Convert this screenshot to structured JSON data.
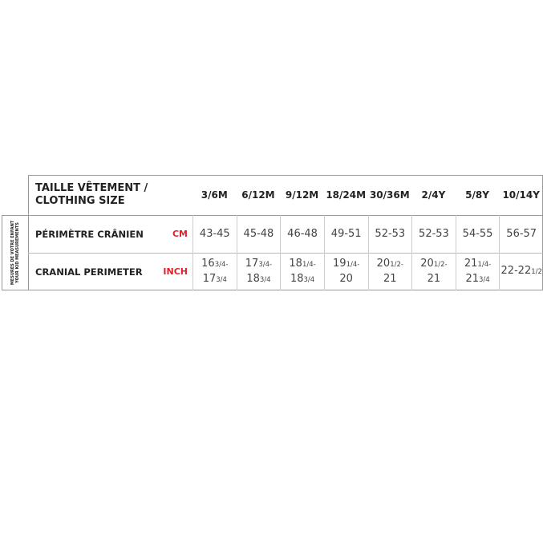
{
  "side_label": [
    "MESURES DE VOTRE ENFANT",
    "YOUR KID MEASUREMENTS"
  ],
  "table": {
    "header": {
      "title": [
        "TAILLE VÊTEMENT /",
        "CLOTHING SIZE"
      ],
      "sizes": [
        "3/6M",
        "6/12M",
        "9/12M",
        "18/24M",
        "30/36M",
        "2/4Y",
        "5/8Y",
        "10/14Y"
      ]
    },
    "rows": [
      {
        "label": "PÉRIMÈTRE CRÂNIEN",
        "unit": "CM",
        "cells": [
          [
            [
              "43-45"
            ]
          ],
          [
            [
              "45-48"
            ]
          ],
          [
            [
              "46-48"
            ]
          ],
          [
            [
              "49-51"
            ]
          ],
          [
            [
              "52-53"
            ]
          ],
          [
            [
              "52-53"
            ]
          ],
          [
            [
              "54-55"
            ]
          ],
          [
            [
              "56-57"
            ]
          ]
        ]
      },
      {
        "label": "CRANIAL PERIMETER",
        "unit": "INCH",
        "cells": [
          [
            [
              "16",
              "3/4-"
            ],
            [
              "17",
              "3/4"
            ]
          ],
          [
            [
              "17",
              "3/4-"
            ],
            [
              "18",
              "3/4"
            ]
          ],
          [
            [
              "18",
              "1/4-"
            ],
            [
              "18",
              "3/4"
            ]
          ],
          [
            [
              "19",
              "1/4-"
            ],
            [
              "20"
            ]
          ],
          [
            [
              "20",
              "1/2-"
            ],
            [
              "21"
            ]
          ],
          [
            [
              "20",
              "1/2-"
            ],
            [
              "21"
            ]
          ],
          [
            [
              "21",
              "1/4-"
            ],
            [
              "21",
              "3/4"
            ]
          ],
          [
            [
              "22-22",
              "1/2"
            ]
          ]
        ]
      }
    ]
  }
}
